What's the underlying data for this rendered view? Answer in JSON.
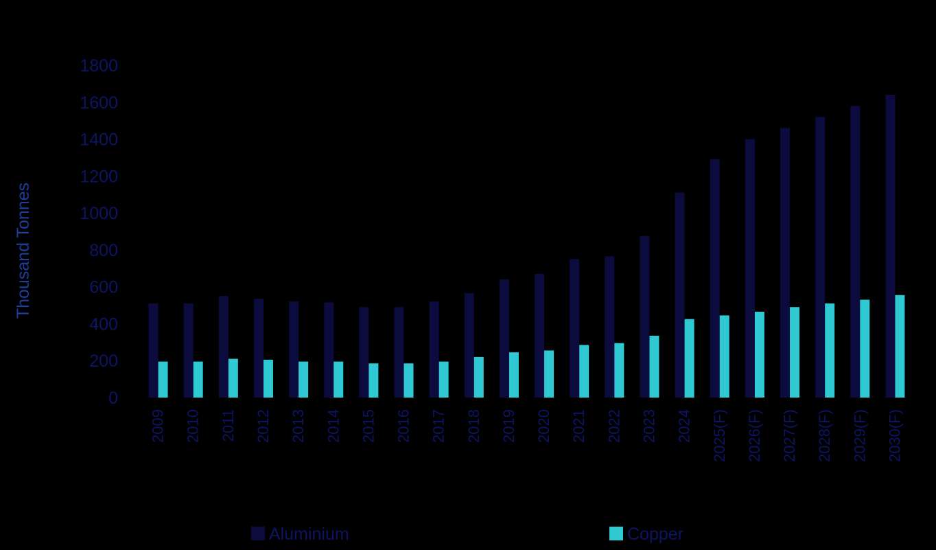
{
  "colors": {
    "background": "#000000",
    "aluminium": "#0b0b3d",
    "copper": "#2ec9d3",
    "text": "#0d1463",
    "ylabel": "#1f3e9c"
  },
  "chart_data": {
    "type": "bar",
    "title": "",
    "xlabel": "",
    "ylabel": "Thousand Tonnes",
    "ylim": [
      0,
      1800
    ],
    "yticks": [
      0,
      200,
      400,
      600,
      800,
      1000,
      1200,
      1400,
      1600,
      1800
    ],
    "grid": false,
    "legend_position": "bottom",
    "categories": [
      "2009",
      "2010",
      "2011",
      "2012",
      "2013",
      "2014",
      "2015",
      "2016",
      "2017",
      "2018",
      "2019",
      "2020",
      "2021",
      "2022",
      "2023",
      "2024",
      "2025(F)",
      "2026(F)",
      "2027(F)",
      "2028(F)",
      "2029(F)",
      "2030(F)"
    ],
    "series": [
      {
        "name": "Aluminium",
        "values": [
          510,
          510,
          550,
          535,
          520,
          515,
          490,
          490,
          520,
          565,
          640,
          670,
          750,
          765,
          875,
          1110,
          1290,
          1400,
          1460,
          1520,
          1580,
          1640
        ]
      },
      {
        "name": "Copper",
        "values": [
          195,
          195,
          210,
          205,
          195,
          195,
          185,
          185,
          195,
          220,
          245,
          255,
          285,
          295,
          335,
          425,
          445,
          465,
          490,
          510,
          530,
          555
        ]
      }
    ]
  }
}
